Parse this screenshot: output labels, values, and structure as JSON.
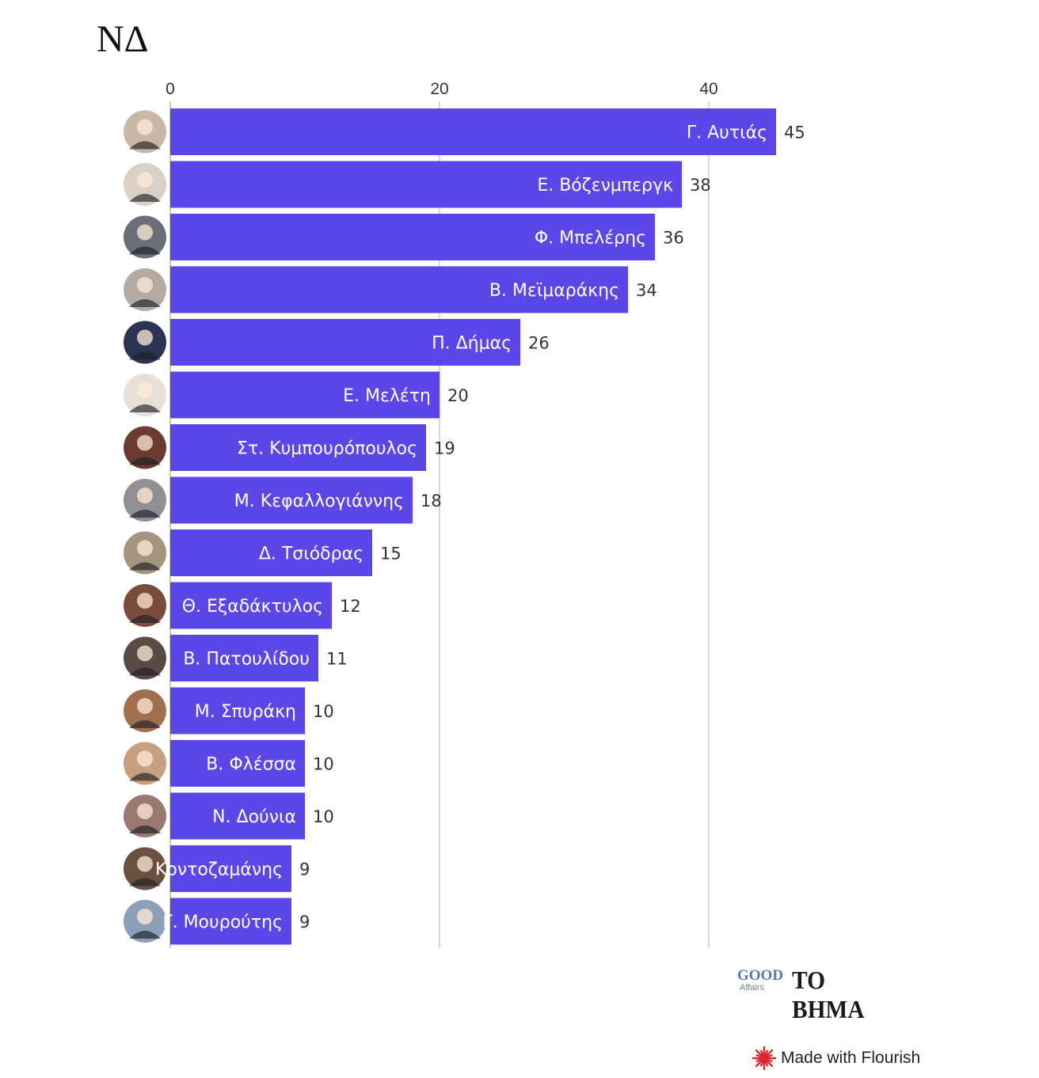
{
  "chart_data": {
    "type": "bar",
    "orientation": "horizontal",
    "title": "ΝΔ",
    "xlabel": "",
    "ylabel": "",
    "xlim": [
      0,
      45
    ],
    "x_ticks": [
      0,
      20,
      40
    ],
    "grid": true,
    "bar_color": "#5b47e8",
    "categories": [
      "Γ. Αυτιάς",
      "Ε. Βόζενμπεργκ",
      "Φ. Μπελέρης",
      "Β. Μεϊμαράκης",
      "Π. Δήμας",
      "Ε. Μελέτη",
      "Στ. Κυμπουρόπουλος",
      "Μ. Κεφαλλογιάννης",
      "Δ. Τσιόδρας",
      "Θ. Εξαδάκτυλος",
      "Β. Πατουλίδου",
      "Μ. Σπυράκη",
      "Β. Φλέσσα",
      "Ν. Δούνια",
      "Κοντοζαμάνης",
      "Γ. Μουρούτης"
    ],
    "values": [
      45,
      38,
      36,
      34,
      26,
      20,
      19,
      18,
      15,
      12,
      11,
      10,
      10,
      10,
      9,
      9
    ]
  },
  "branding": {
    "good_word": "GOOD",
    "good_sub": "Affairs",
    "newspaper": "ΤΟ ΒΗΜΑ",
    "flourish": "Made with Flourish",
    "flourish_color": "#e0262d"
  }
}
